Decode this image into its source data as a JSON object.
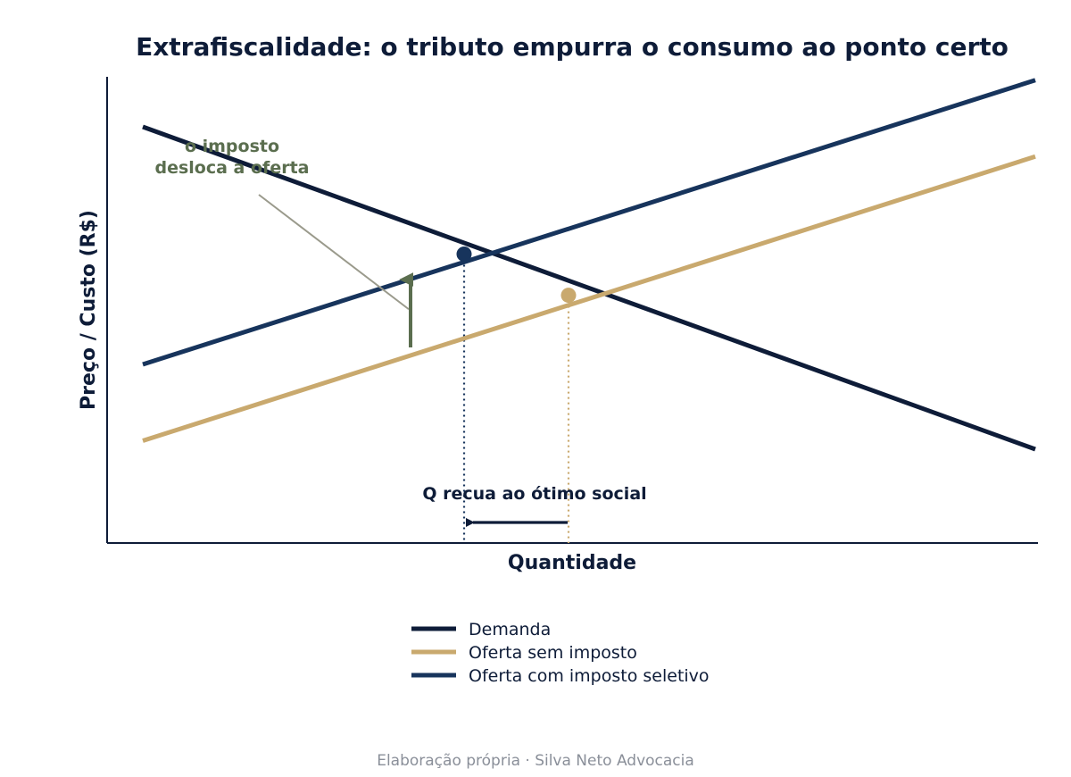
{
  "colors": {
    "navy": "#0e1c38",
    "blue": "#17345c",
    "gold": "#c9a96e",
    "green": "#5b6e4f",
    "gray_line": "#9a9a8c",
    "footer": "#8a8f99"
  },
  "chart_data": {
    "type": "line",
    "title": "Extrafiscalidade: o tributo empurra o consumo ao ponto certo",
    "xlabel": "Quantidade",
    "ylabel": "Preço / Custo (R$)",
    "xlim": [
      0,
      10
    ],
    "ylim": [
      0,
      10
    ],
    "grid": false,
    "legend_position": "bottom-center",
    "series": [
      {
        "name": "Demanda",
        "color": "#0e1c38",
        "x": [
          0.4,
          10.4
        ],
        "y": [
          8.8,
          1.2
        ]
      },
      {
        "name": "Oferta sem imposto",
        "color": "#c9a96e",
        "x": [
          0.4,
          10.4
        ],
        "y": [
          1.4,
          8.1
        ]
      },
      {
        "name": "Oferta com imposto seletivo",
        "color": "#17345c",
        "x": [
          0.4,
          10.4
        ],
        "y": [
          3.2,
          9.9
        ]
      }
    ],
    "points": [
      {
        "label": "equilibrio_com_imposto",
        "x": 4.0,
        "y": 5.8,
        "color": "#17345c"
      },
      {
        "label": "equilibrio_sem_imposto",
        "x": 5.17,
        "y": 4.83,
        "color": "#c9a96e"
      }
    ],
    "annotations": {
      "tax_shift": {
        "text_line1": "o imposto",
        "text_line2": "desloca a oferta",
        "label_x": 1.4,
        "label_y": 8.0,
        "arrow_x": 3.4,
        "arrow_from_y": 3.6,
        "arrow_to_y": 5.2,
        "pointer_from_x": 1.7,
        "pointer_from_y": 7.2,
        "pointer_to_x": 3.4,
        "pointer_to_y": 4.5
      },
      "quantity_shift": {
        "text": "Q recua ao ótimo social",
        "label_x": 4.6,
        "label_y": 1.0,
        "arrow_from_x": 5.1,
        "arrow_to_x": 4.0,
        "arrow_y": 0.45
      }
    },
    "footer": "Elaboração própria  ·  Silva Neto Advocacia"
  }
}
